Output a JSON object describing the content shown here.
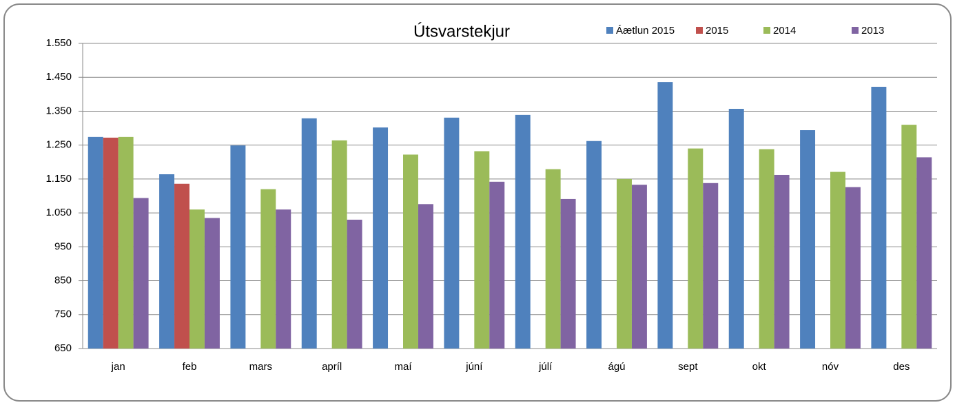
{
  "chart_data": {
    "type": "bar",
    "title": "Útsvarstekjur",
    "categories": [
      "jan",
      "feb",
      "mars",
      "apríl",
      "maí",
      "júní",
      "júlí",
      "ágú",
      "sept",
      "okt",
      "nóv",
      "des"
    ],
    "series": [
      {
        "name": "Áætlun 2015",
        "color": "#4f81bd",
        "values": [
          1274,
          1164,
          1249,
          1329,
          1302,
          1331,
          1339,
          1262,
          1436,
          1357,
          1294,
          1422
        ]
      },
      {
        "name": "2015",
        "color": "#c0504d",
        "values": [
          1272,
          1136,
          null,
          null,
          null,
          null,
          null,
          null,
          null,
          null,
          null,
          null
        ]
      },
      {
        "name": "2014",
        "color": "#9bbb59",
        "values": [
          1274,
          1060,
          1120,
          1264,
          1222,
          1232,
          1179,
          1150,
          1240,
          1238,
          1171,
          1310
        ]
      },
      {
        "name": "2013",
        "color": "#8064a2",
        "values": [
          1094,
          1035,
          1060,
          1030,
          1076,
          1142,
          1091,
          1133,
          1138,
          1162,
          1126,
          1214
        ]
      }
    ],
    "ylim": [
      650,
      1550
    ],
    "yticks": [
      650,
      750,
      850,
      950,
      {
        "value": 1050,
        "label": "1.050"
      },
      {
        "value": 1150,
        "label": "1.150"
      },
      {
        "value": 1250,
        "label": "1.250"
      },
      {
        "value": 1350,
        "label": "1.350"
      },
      {
        "value": 1450,
        "label": "1.450"
      },
      {
        "value": 1550,
        "label": "1.550"
      }
    ],
    "grid": true,
    "legend": "top-right"
  }
}
